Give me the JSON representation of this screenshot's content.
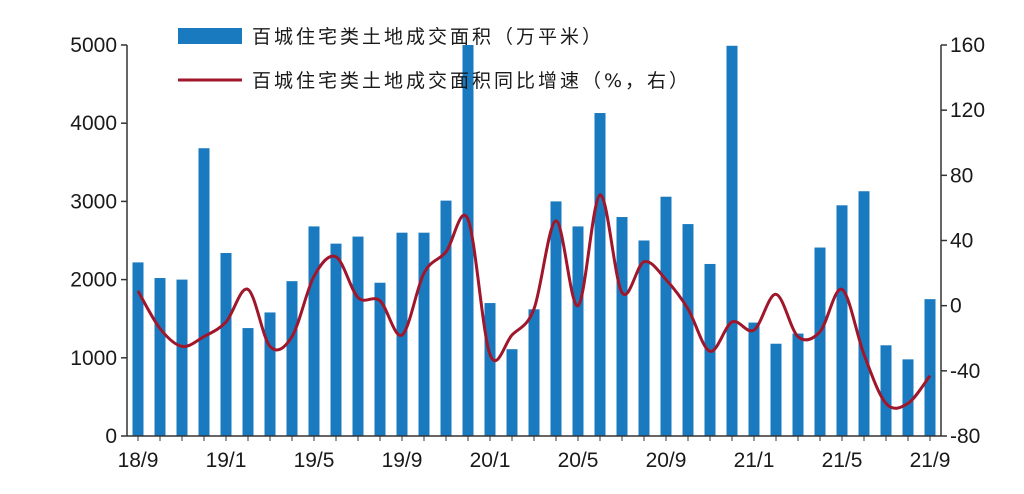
{
  "colors": {
    "bar": "#1a7abf",
    "line": "#a0162a",
    "axis": "#333333",
    "background": "#ffffff"
  },
  "legend": {
    "bar_label": "百城住宅类土地成交面积（万平米）",
    "line_label": "百城住宅类土地成交面积同比增速（%，右）",
    "placement": "top-center"
  },
  "chart_data": {
    "type": "bar",
    "categories": [
      "18/9",
      "18/10",
      "18/11",
      "18/12",
      "19/1",
      "19/2",
      "19/3",
      "19/4",
      "19/5",
      "19/6",
      "19/7",
      "19/8",
      "19/9",
      "19/10",
      "19/11",
      "19/12",
      "20/1",
      "20/2",
      "20/3",
      "20/4",
      "20/5",
      "20/6",
      "20/7",
      "20/8",
      "20/9",
      "20/10",
      "20/11",
      "20/12",
      "21/1",
      "21/2",
      "21/3",
      "21/4",
      "21/5",
      "21/6",
      "21/7",
      "21/8",
      "21/9"
    ],
    "x_tick_labels": [
      "18/9",
      "19/1",
      "19/5",
      "19/9",
      "20/1",
      "20/5",
      "20/9",
      "21/1",
      "21/5",
      "21/9"
    ],
    "series": [
      {
        "name": "百城住宅类土地成交面积（万平米）",
        "type": "bar",
        "axis": "left",
        "values": [
          2220,
          2020,
          2000,
          3680,
          2340,
          1380,
          1580,
          1980,
          2680,
          2460,
          2550,
          1960,
          2600,
          2600,
          3010,
          5000,
          1700,
          1110,
          1620,
          3000,
          2680,
          4130,
          2800,
          2500,
          3060,
          2710,
          2200,
          4990,
          1450,
          1180,
          1310,
          2410,
          2950,
          3130,
          1160,
          980,
          1750
        ]
      },
      {
        "name": "百城住宅类土地成交面积同比增速（%，右）",
        "type": "line",
        "axis": "right",
        "values": [
          9,
          -14,
          -25,
          -19,
          -10,
          10,
          -25,
          -19,
          18,
          30,
          5,
          3,
          -18,
          20,
          33,
          53,
          -30,
          -18,
          -2,
          52,
          0,
          68,
          8,
          27,
          16,
          -2,
          -28,
          -10,
          -15,
          7,
          -19,
          -16,
          10,
          -30,
          -60,
          -60,
          -43
        ]
      }
    ],
    "y_left": {
      "min": 0,
      "max": 5000,
      "ticks": [
        0,
        1000,
        2000,
        3000,
        4000,
        5000
      ]
    },
    "y_right": {
      "min": -80,
      "max": 160,
      "ticks": [
        -80,
        -40,
        0,
        40,
        80,
        120,
        160
      ]
    },
    "grid": false
  }
}
